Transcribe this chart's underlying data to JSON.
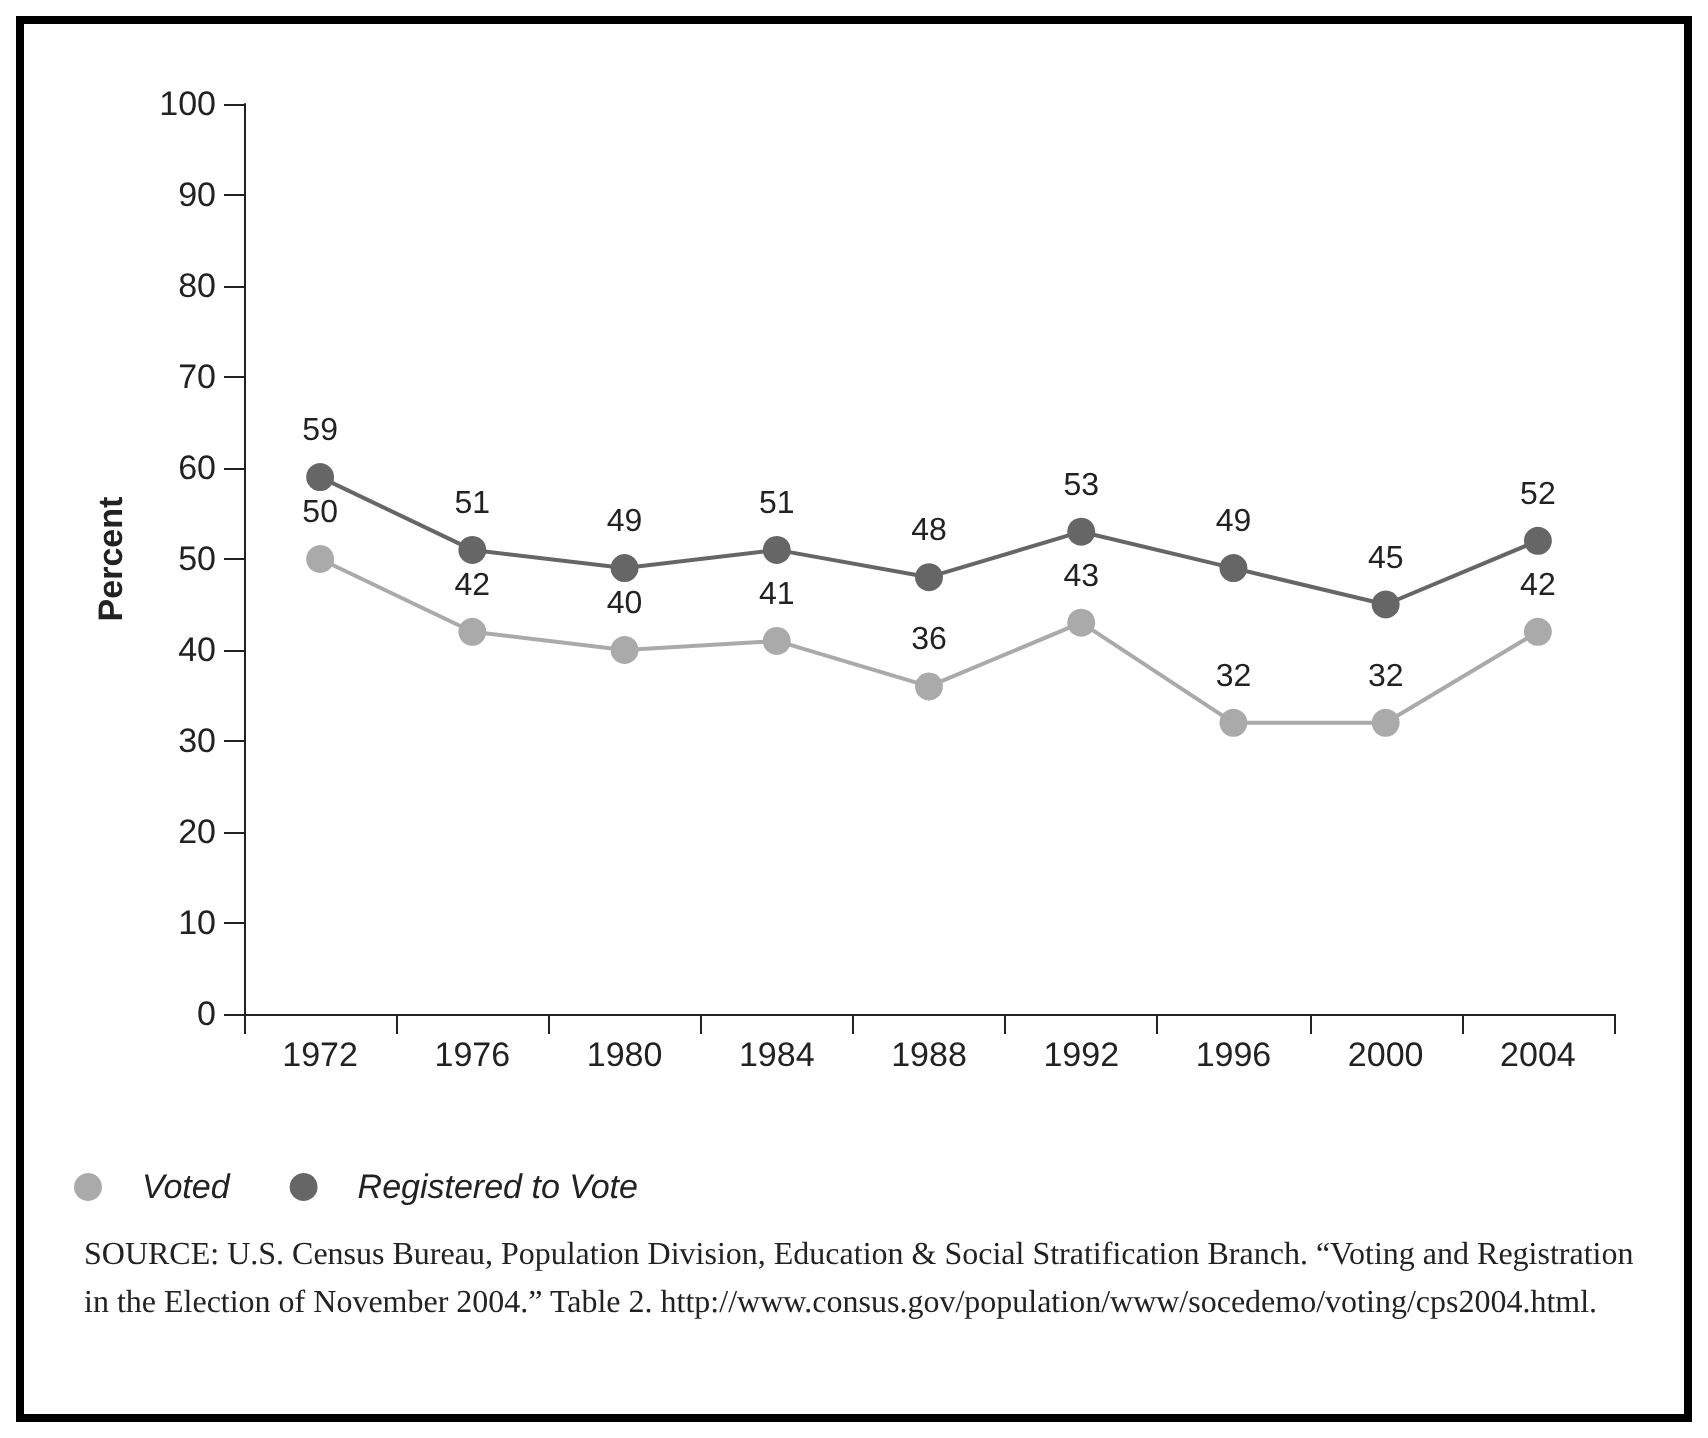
{
  "chart_data": {
    "type": "line",
    "ylabel": "Percent",
    "categories": [
      "1972",
      "1976",
      "1980",
      "1984",
      "1988",
      "1992",
      "1996",
      "2000",
      "2004"
    ],
    "series": [
      {
        "name": "Voted",
        "color": "#aaaaaa",
        "values": [
          50,
          42,
          40,
          41,
          36,
          43,
          32,
          32,
          42
        ]
      },
      {
        "name": "Registered to Vote",
        "color": "#666666",
        "values": [
          59,
          51,
          49,
          51,
          48,
          53,
          49,
          45,
          52
        ]
      }
    ],
    "ylim": [
      0,
      100
    ],
    "yticks": [
      0,
      10,
      20,
      30,
      40,
      50,
      60,
      70,
      80,
      90,
      100
    ],
    "grid": false,
    "legend": "bottom left",
    "marker": "circle",
    "line_style": "solid",
    "data_labels": true,
    "annotations": [
      "SOURCE:  U.S. Census Bureau, Population Division, Education & Social Stratification Branch. “Voting and Registration in the Election of November 2004.” Table 2. http://www.consus.gov/population/www/socedemo/voting/cps2004.html."
    ]
  }
}
